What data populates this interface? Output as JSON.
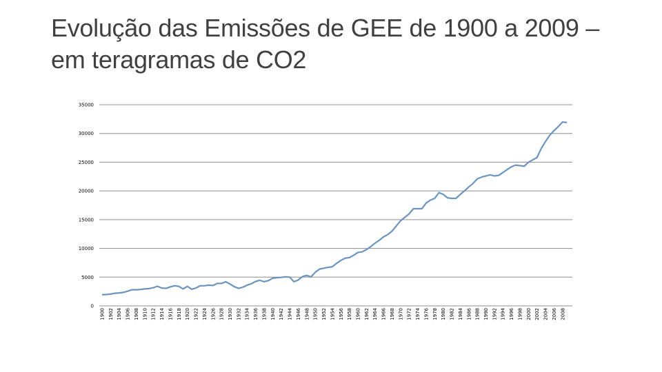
{
  "slide": {
    "title_line1": "Evolução das Emissões de GEE de 1900 a 2009 –",
    "title_line2": "em teragramas de CO2"
  },
  "chart_data": {
    "type": "line",
    "title": "",
    "xlabel": "",
    "ylabel": "",
    "xlim": [
      1900,
      2009
    ],
    "ylim": [
      0,
      35000
    ],
    "y_ticks": [
      0,
      5000,
      10000,
      15000,
      20000,
      25000,
      30000,
      35000
    ],
    "x_tick_step": 2,
    "grid": "horizontal",
    "legend": "none",
    "line_color": "#6a93bf",
    "series": [
      {
        "x": [
          1900,
          1901,
          1902,
          1903,
          1904,
          1905,
          1906,
          1907,
          1908,
          1909,
          1910,
          1911,
          1912,
          1913,
          1914,
          1915,
          1916,
          1917,
          1918,
          1919,
          1920,
          1921,
          1922,
          1923,
          1924,
          1925,
          1926,
          1927,
          1928,
          1929,
          1930,
          1931,
          1932,
          1933,
          1934,
          1935,
          1936,
          1937,
          1938,
          1939,
          1940,
          1941,
          1942,
          1943,
          1944,
          1945,
          1946,
          1947,
          1948,
          1949,
          1950,
          1951,
          1952,
          1953,
          1954,
          1955,
          1956,
          1957,
          1958,
          1959,
          1960,
          1961,
          1962,
          1963,
          1964,
          1965,
          1966,
          1967,
          1968,
          1969,
          1970,
          1971,
          1972,
          1973,
          1974,
          1975,
          1976,
          1977,
          1978,
          1979,
          1980,
          1981,
          1982,
          1983,
          1984,
          1985,
          1986,
          1987,
          1988,
          1989,
          1990,
          1991,
          1992,
          1993,
          1994,
          1995,
          1996,
          1997,
          1998,
          1999,
          2000,
          2001,
          2002,
          2003,
          2004,
          2005,
          2006,
          2007,
          2008,
          2009
        ],
        "values": [
          1950,
          1980,
          2050,
          2200,
          2250,
          2350,
          2550,
          2800,
          2800,
          2850,
          2950,
          3000,
          3150,
          3400,
          3100,
          3050,
          3300,
          3500,
          3400,
          2950,
          3400,
          2900,
          3100,
          3500,
          3500,
          3600,
          3550,
          3900,
          3900,
          4200,
          3800,
          3350,
          3050,
          3250,
          3600,
          3850,
          4250,
          4450,
          4200,
          4400,
          4800,
          4900,
          4950,
          5050,
          5000,
          4200,
          4500,
          5100,
          5300,
          5050,
          5850,
          6400,
          6550,
          6700,
          6800,
          7400,
          7900,
          8300,
          8400,
          8800,
          9300,
          9400,
          9800,
          10300,
          10900,
          11400,
          12000,
          12400,
          13000,
          13900,
          14800,
          15400,
          16000,
          16900,
          16900,
          16900,
          17900,
          18400,
          18700,
          19700,
          19400,
          18800,
          18700,
          18700,
          19400,
          20000,
          20700,
          21300,
          22100,
          22400,
          22600,
          22800,
          22600,
          22700,
          23200,
          23700,
          24200,
          24500,
          24400,
          24300,
          25000,
          25400,
          25800,
          27400,
          28600,
          29700,
          30500,
          31200,
          32000,
          31900
        ]
      }
    ]
  }
}
